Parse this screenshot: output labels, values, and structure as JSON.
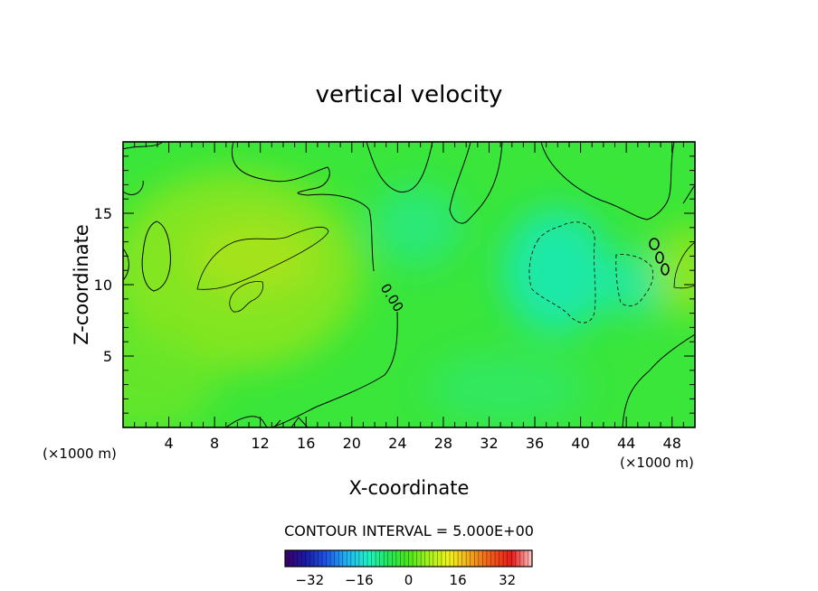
{
  "chart_data": {
    "type": "heatmap",
    "title": "vertical velocity",
    "xlabel": "X-coordinate",
    "ylabel": "Z-coordinate",
    "x_unit": "(×1000 m)",
    "z_unit": "(×1000 m)",
    "xlim": [
      0,
      50
    ],
    "zlim": [
      0,
      20
    ],
    "x_ticks": [
      4,
      8,
      12,
      16,
      20,
      24,
      28,
      32,
      36,
      40,
      44,
      48
    ],
    "z_ticks": [
      5,
      10,
      15
    ],
    "contour_interval_text": "CONTOUR INTERVAL = 5.000E+00",
    "zero_contour_label": "0.00",
    "colorbar": {
      "range": [
        -40,
        40
      ],
      "ticks": [
        -32,
        -16,
        0,
        16,
        32
      ],
      "colors": [
        "#3a0066",
        "#1a1aa8",
        "#1f55e8",
        "#21b4f2",
        "#1ef2c8",
        "#22e85a",
        "#4ce61a",
        "#a6f21a",
        "#f2f21a",
        "#f2a61a",
        "#f25a1a",
        "#e81a1a",
        "#ffc6c6"
      ]
    },
    "field_features": [
      {
        "kind": "positive_max",
        "x": 10,
        "z": 11.2,
        "contour": "5"
      },
      {
        "kind": "positive_max",
        "x": 49.5,
        "z": 11,
        "contour": "5"
      },
      {
        "kind": "negative_min",
        "x": 38.5,
        "z": 11,
        "contour": "-5"
      },
      {
        "kind": "negative_min",
        "x": 44.5,
        "z": 10,
        "contour": "-5"
      }
    ]
  }
}
